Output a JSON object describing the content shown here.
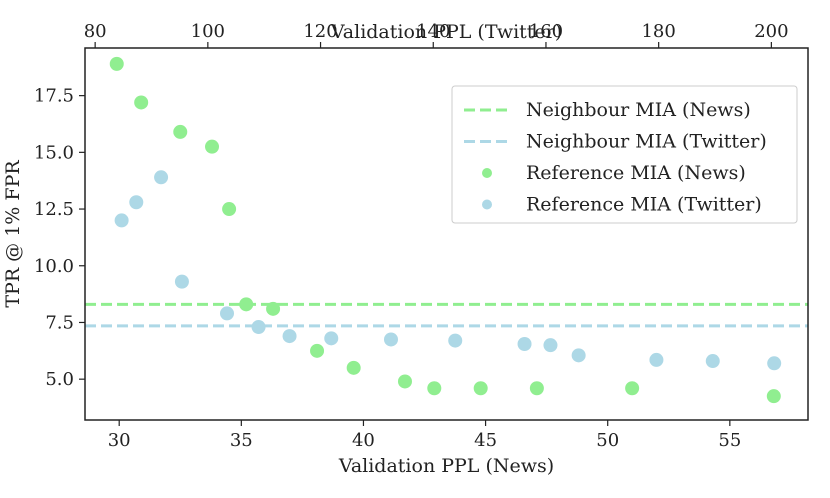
{
  "chart_data": {
    "type": "scatter",
    "title": "",
    "xlabel": "Validation PPL (News)",
    "ylabel": "TPR @ 1% FPR",
    "x2label": "Validation PPL (Twitter)",
    "xlim": [
      28.6,
      58.2
    ],
    "ylim": [
      3.2,
      19.6
    ],
    "x2lim": [
      78.2,
      206.5
    ],
    "xticks": [
      30,
      35,
      40,
      45,
      50,
      55
    ],
    "yticks": [
      5.0,
      7.5,
      10.0,
      12.5,
      15.0,
      17.5
    ],
    "ytick_labels": [
      "5.0",
      "7.5",
      "10.0",
      "12.5",
      "15.0",
      "17.5"
    ],
    "x2ticks": [
      80,
      100,
      120,
      140,
      160,
      180,
      200
    ],
    "grid": false,
    "legend_position": "top-right",
    "hlines": [
      {
        "name": "Neighbour MIA (News)",
        "y": 8.3,
        "color": "#90ee90"
      },
      {
        "name": "Neighbour MIA (Twitter)",
        "y": 7.35,
        "color": "#add8e6"
      }
    ],
    "series": [
      {
        "name": "Reference MIA (News)",
        "axis": "bottom",
        "color": "#90ee90",
        "points": [
          {
            "x": 29.9,
            "y": 18.9
          },
          {
            "x": 30.9,
            "y": 17.2
          },
          {
            "x": 32.5,
            "y": 15.9
          },
          {
            "x": 33.8,
            "y": 15.25
          },
          {
            "x": 34.5,
            "y": 12.5
          },
          {
            "x": 35.2,
            "y": 8.3
          },
          {
            "x": 36.3,
            "y": 8.1
          },
          {
            "x": 38.1,
            "y": 6.25
          },
          {
            "x": 39.6,
            "y": 5.5
          },
          {
            "x": 41.7,
            "y": 4.9
          },
          {
            "x": 42.9,
            "y": 4.6
          },
          {
            "x": 44.8,
            "y": 4.6
          },
          {
            "x": 47.1,
            "y": 4.6
          },
          {
            "x": 51.0,
            "y": 4.6
          },
          {
            "x": 56.8,
            "y": 4.25
          }
        ]
      },
      {
        "name": "Reference MIA (Twitter)",
        "axis": "top",
        "color": "#add8e6",
        "points": [
          {
            "x": 84.7,
            "y": 12.0
          },
          {
            "x": 87.3,
            "y": 12.8
          },
          {
            "x": 91.7,
            "y": 13.9
          },
          {
            "x": 95.4,
            "y": 9.3
          },
          {
            "x": 103.4,
            "y": 7.9
          },
          {
            "x": 109.0,
            "y": 7.3
          },
          {
            "x": 114.5,
            "y": 6.9
          },
          {
            "x": 121.9,
            "y": 6.8
          },
          {
            "x": 132.5,
            "y": 6.75
          },
          {
            "x": 143.9,
            "y": 6.7
          },
          {
            "x": 156.2,
            "y": 6.55
          },
          {
            "x": 160.8,
            "y": 6.5
          },
          {
            "x": 165.8,
            "y": 6.05
          },
          {
            "x": 179.6,
            "y": 5.85
          },
          {
            "x": 189.6,
            "y": 5.8
          },
          {
            "x": 200.5,
            "y": 5.7
          }
        ]
      }
    ]
  },
  "legend": {
    "items": [
      {
        "label": "Neighbour MIA (News)",
        "kind": "line",
        "color": "#90ee90"
      },
      {
        "label": "Neighbour MIA (Twitter)",
        "kind": "line",
        "color": "#add8e6"
      },
      {
        "label": "Reference MIA (News)",
        "kind": "dot",
        "color": "#90ee90"
      },
      {
        "label": "Reference MIA (Twitter)",
        "kind": "dot",
        "color": "#add8e6"
      }
    ]
  }
}
